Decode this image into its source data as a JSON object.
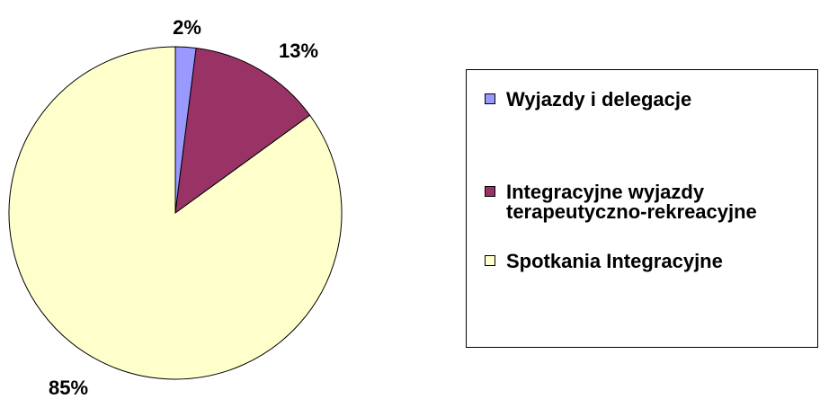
{
  "chart_data": {
    "type": "pie",
    "categories": [
      "Wyjazdy i delegacje",
      "Integracyjne wyjazdy terapeutyczno-rekreacyjne",
      "Spotkania Integracyjne"
    ],
    "values": [
      2,
      13,
      85
    ],
    "value_labels": [
      "2%",
      "13%",
      "85%"
    ],
    "colors": [
      "#9999ff",
      "#993366",
      "#ffffcc"
    ],
    "legend": "right"
  }
}
